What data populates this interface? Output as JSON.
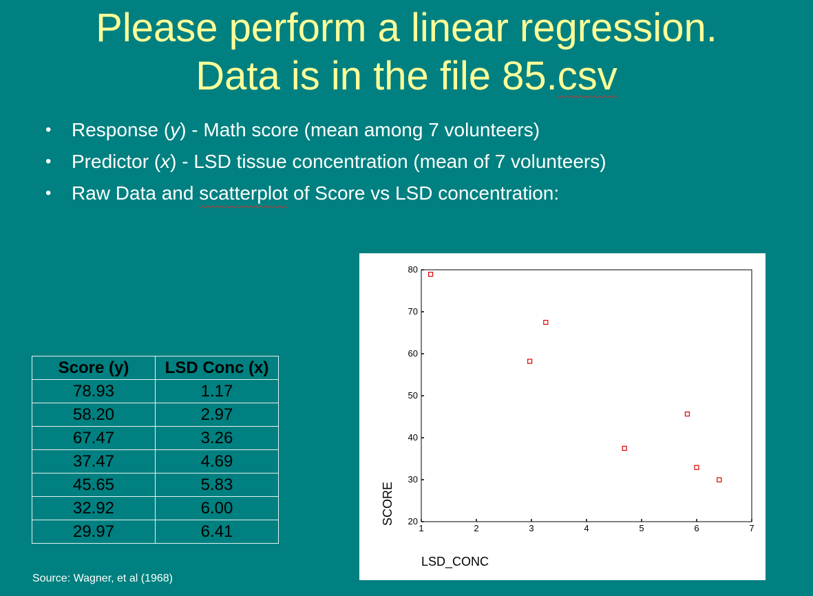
{
  "slide": {
    "title_line1": "Please perform a linear regression.",
    "title_line2_prefix": "Data is in the file 85.",
    "title_line2_suffix": "csv",
    "bullets": [
      {
        "before": "Response (",
        "var": "y",
        "after": ") - Math score (mean among 7 volunteers)"
      },
      {
        "before": "Predictor (",
        "var": "x",
        "after": ") - LSD tissue concentration (mean of 7 volunteers)"
      },
      {
        "before": "Raw Data and ",
        "squiggle": "scatterplot",
        "after": " of Score vs LSD concentration:"
      }
    ],
    "bullet_glyph": "•",
    "source": "Source: Wagner, et al (1968)"
  },
  "table": {
    "headers": [
      "Score (y)",
      "LSD Conc (x)"
    ],
    "rows": [
      [
        "78.93",
        "1.17"
      ],
      [
        "58.20",
        "2.97"
      ],
      [
        "67.47",
        "3.26"
      ],
      [
        "37.47",
        "4.69"
      ],
      [
        "45.65",
        "5.83"
      ],
      [
        "32.92",
        "6.00"
      ],
      [
        "29.97",
        "6.41"
      ]
    ]
  },
  "chart_data": {
    "type": "scatter",
    "title": "",
    "xlabel": "LSD_CONC",
    "ylabel": "SCORE",
    "xlim": [
      1,
      7
    ],
    "ylim": [
      20,
      80
    ],
    "xticks": [
      1,
      2,
      3,
      4,
      5,
      6,
      7
    ],
    "yticks": [
      20,
      30,
      40,
      50,
      60,
      70,
      80
    ],
    "series": [
      {
        "name": "SCORE",
        "marker": "open-square",
        "color": "#dd0000",
        "x": [
          1.17,
          2.97,
          3.26,
          4.69,
          5.83,
          6.0,
          6.41
        ],
        "y": [
          78.93,
          58.2,
          67.47,
          37.47,
          45.65,
          32.92,
          29.97
        ]
      }
    ]
  }
}
